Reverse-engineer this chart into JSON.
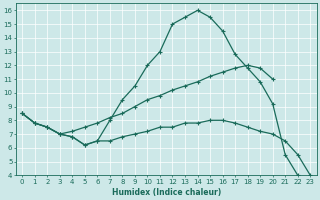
{
  "xlabel": "Humidex (Indice chaleur)",
  "xlim": [
    -0.5,
    23.5
  ],
  "ylim": [
    4,
    16.5
  ],
  "xticks": [
    0,
    1,
    2,
    3,
    4,
    5,
    6,
    7,
    8,
    9,
    10,
    11,
    12,
    13,
    14,
    15,
    16,
    17,
    18,
    19,
    20,
    21,
    22,
    23
  ],
  "yticks": [
    4,
    5,
    6,
    7,
    8,
    9,
    10,
    11,
    12,
    13,
    14,
    15,
    16
  ],
  "bg_color": "#cde8e8",
  "line_color": "#1a6b5a",
  "grid_color": "#b0d8d8",
  "curve_x": [
    0,
    1,
    2,
    3,
    4,
    5,
    6,
    7,
    8,
    9,
    10,
    11,
    12,
    13,
    14,
    15,
    16,
    17,
    18,
    19,
    20,
    21,
    22
  ],
  "curve_y": [
    8.5,
    7.8,
    7.5,
    7.0,
    6.8,
    6.2,
    6.5,
    8.0,
    9.5,
    10.5,
    12.0,
    13.0,
    15.0,
    15.5,
    16.0,
    15.5,
    14.5,
    12.8,
    11.8,
    10.8,
    9.2,
    5.5,
    4.0
  ],
  "upper_x": [
    0,
    1,
    2,
    3,
    4,
    5,
    6,
    7,
    8,
    9,
    10,
    11,
    12,
    13,
    14,
    15,
    16,
    17,
    18,
    19,
    20
  ],
  "upper_y": [
    8.5,
    7.8,
    7.5,
    7.0,
    7.2,
    7.5,
    7.8,
    8.2,
    8.5,
    9.0,
    9.5,
    9.8,
    10.2,
    10.5,
    10.8,
    11.2,
    11.5,
    11.8,
    12.0,
    11.8,
    11.0
  ],
  "lower_x": [
    0,
    1,
    2,
    3,
    4,
    5,
    6,
    7,
    8,
    9,
    10,
    11,
    12,
    13,
    14,
    15,
    16,
    17,
    18,
    19,
    20,
    21,
    22,
    23
  ],
  "lower_y": [
    8.5,
    7.8,
    7.5,
    7.0,
    6.8,
    6.2,
    6.5,
    6.5,
    6.8,
    7.0,
    7.2,
    7.5,
    7.5,
    7.8,
    7.8,
    8.0,
    8.0,
    7.8,
    7.5,
    7.2,
    7.0,
    6.5,
    5.5,
    4.0
  ],
  "figsize": [
    3.2,
    2.0
  ],
  "dpi": 100
}
